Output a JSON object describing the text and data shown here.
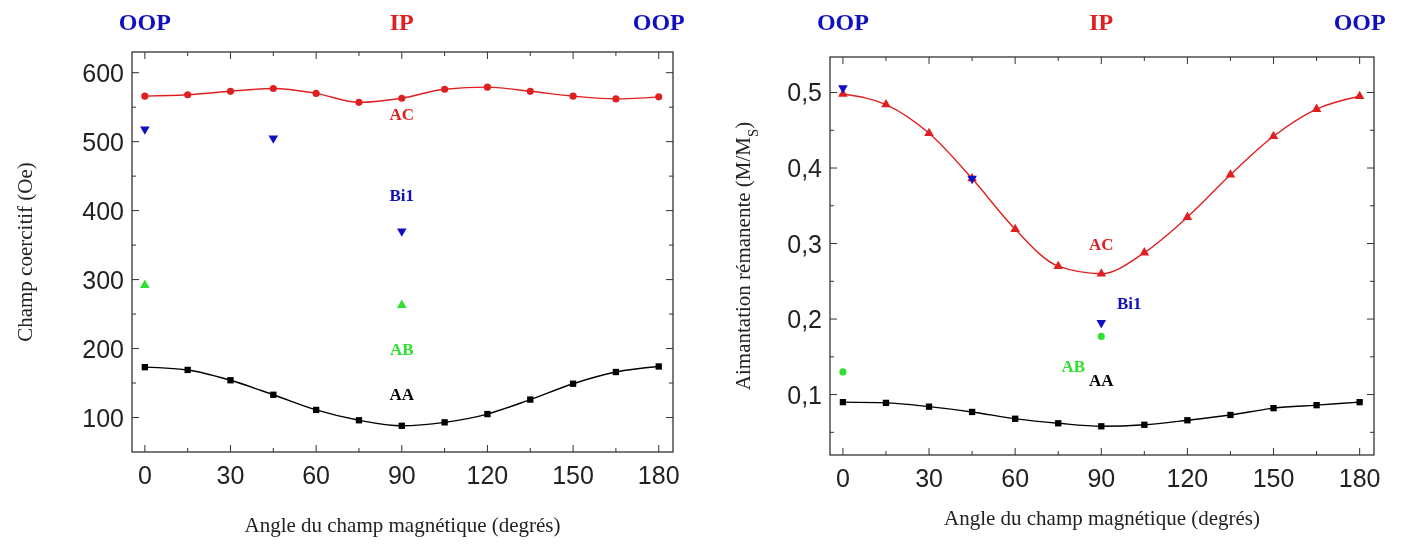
{
  "chart_data": [
    {
      "type": "line",
      "xlabel": "Angle du champ magnétique (degrés)",
      "ylabel": "Champ coercitif (Oe)",
      "annotations": [
        {
          "text": "OOP",
          "x": 0
        },
        {
          "text": "IP",
          "x": 90
        },
        {
          "text": "OOP",
          "x": 180
        }
      ],
      "xlim": [
        -4.5,
        185
      ],
      "ylim": [
        50,
        630
      ],
      "xticks": [
        0,
        {
          "value": 15,
          "label": null
        },
        30,
        {
          "value": 45,
          "label": null
        },
        60,
        {
          "value": 75,
          "label": null
        },
        90,
        {
          "value": 105,
          "label": null
        },
        120,
        {
          "value": 135,
          "label": null
        },
        150,
        {
          "value": 165,
          "label": null
        },
        180
      ],
      "yticks": [
        100,
        {
          "value": 150,
          "label": null
        },
        200,
        {
          "value": 250,
          "label": null
        },
        300,
        {
          "value": 350,
          "label": null
        },
        400,
        {
          "value": 450,
          "label": null
        },
        500,
        {
          "value": 550,
          "label": null
        },
        600
      ],
      "grid": false,
      "series": [
        {
          "name": "AC",
          "marker": "circle",
          "color": "#e02020",
          "x": [
            0,
            15,
            30,
            45,
            60,
            75,
            90,
            105,
            120,
            135,
            150,
            165,
            180
          ],
          "values": [
            566,
            568,
            573,
            577,
            570,
            557,
            563,
            576,
            579,
            573,
            566,
            562,
            565
          ]
        },
        {
          "name": "Bi1",
          "type": "scatter",
          "marker": "triangle-down",
          "color": "#1010c0",
          "x": [
            0,
            45,
            90
          ],
          "values": [
            518,
            505,
            370
          ]
        },
        {
          "name": "AB",
          "type": "scatter",
          "marker": "triangle",
          "color": "#30e030",
          "x": [
            0,
            90
          ],
          "values": [
            292,
            263
          ]
        },
        {
          "name": "AA",
          "marker": "square",
          "color": "#000000",
          "x": [
            0,
            15,
            30,
            45,
            60,
            75,
            90,
            105,
            120,
            135,
            150,
            165,
            180
          ],
          "values": [
            173,
            169,
            154,
            133,
            111,
            96,
            88,
            93,
            105,
            126,
            149,
            166,
            174
          ]
        }
      ]
    },
    {
      "type": "line",
      "xlabel": "Angle du champ magnétique (degrés)",
      "ylabel": "Aimantation rémanente (M/M$_{S}$)",
      "annotations": [
        {
          "text": "OOP",
          "x": 0
        },
        {
          "text": "IP",
          "x": 90
        },
        {
          "text": "OOP",
          "x": 180
        }
      ],
      "xlim": [
        -4.5,
        185
      ],
      "ylim": [
        0.02,
        0.547
      ],
      "xticks": [
        0,
        {
          "value": 15,
          "label": null
        },
        30,
        {
          "value": 45,
          "label": null
        },
        60,
        {
          "value": 75,
          "label": null
        },
        90,
        {
          "value": 105,
          "label": null
        },
        120,
        {
          "value": 135,
          "label": null
        },
        150,
        {
          "value": 165,
          "label": null
        },
        180
      ],
      "yticks": [
        {
          "value": 0.05,
          "label": null
        },
        {
          "value": 0.1,
          "label": "0,1"
        },
        {
          "value": 0.15,
          "label": null
        },
        {
          "value": 0.2,
          "label": "0,2"
        },
        {
          "value": 0.25,
          "label": null
        },
        {
          "value": 0.3,
          "label": "0,3"
        },
        {
          "value": 0.35,
          "label": null
        },
        {
          "value": 0.4,
          "label": "0,4"
        },
        {
          "value": 0.45,
          "label": null
        },
        {
          "value": 0.5,
          "label": "0,5"
        }
      ],
      "grid": false,
      "series": [
        {
          "name": "AC",
          "marker": "triangle",
          "color": "#e02020",
          "x": [
            0,
            15,
            30,
            45,
            60,
            75,
            90,
            105,
            120,
            135,
            150,
            165,
            180
          ],
          "values": [
            0.498,
            0.484,
            0.446,
            0.386,
            0.319,
            0.27,
            0.26,
            0.288,
            0.335,
            0.391,
            0.442,
            0.478,
            0.495
          ]
        },
        {
          "name": "Bi1",
          "type": "scatter",
          "marker": "triangle-down",
          "color": "#1010c0",
          "x": [
            0,
            45,
            90
          ],
          "values": [
            0.506,
            0.386,
            0.195
          ]
        },
        {
          "name": "AB",
          "type": "scatter",
          "marker": "circle",
          "color": "#30e030",
          "x": [
            0,
            90
          ],
          "values": [
            0.13,
            0.177
          ]
        },
        {
          "name": "AA",
          "marker": "square",
          "color": "#000000",
          "x": [
            0,
            15,
            30,
            45,
            60,
            75,
            90,
            105,
            120,
            135,
            150,
            165,
            180
          ],
          "values": [
            0.09,
            0.089,
            0.084,
            0.077,
            0.068,
            0.062,
            0.058,
            0.06,
            0.066,
            0.073,
            0.082,
            0.086,
            0.09
          ]
        }
      ]
    }
  ]
}
